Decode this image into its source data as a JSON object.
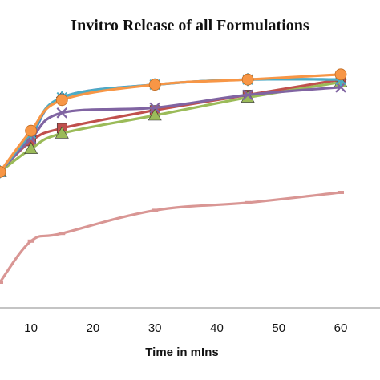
{
  "chart_data": {
    "type": "line",
    "title": "Invitro Release of all Formulations",
    "xlabel": "Time in mIns",
    "ylabel": "",
    "xlim": [
      5,
      62
    ],
    "ylim": [
      0,
      100
    ],
    "grid": false,
    "legend": "none",
    "x_ticks": [
      "10",
      "20",
      "30",
      "40",
      "50",
      "60"
    ],
    "x": [
      5,
      10,
      15,
      30,
      45,
      60
    ],
    "series": [
      {
        "color": "#4f81bd",
        "marker": "diamond",
        "values": [
          53,
          67,
          82,
          87,
          89,
          89
        ]
      },
      {
        "color": "#c0504d",
        "marker": "square",
        "values": [
          53,
          65,
          70,
          77,
          83,
          89
        ]
      },
      {
        "color": "#9bbb59",
        "marker": "triangle",
        "values": [
          53,
          62,
          68,
          75,
          82,
          88
        ]
      },
      {
        "color": "#8064a2",
        "marker": "x",
        "values": [
          53,
          66,
          76,
          78,
          83,
          86
        ]
      },
      {
        "color": "#4bacc6",
        "marker": "star",
        "values": [
          53,
          68,
          82,
          87,
          89,
          89
        ]
      },
      {
        "color": "#f79646",
        "marker": "circle",
        "values": [
          53,
          69,
          81,
          87,
          89,
          91
        ]
      },
      {
        "color": "#d99694",
        "marker": "dash",
        "values": [
          10,
          26,
          29,
          38,
          41,
          45
        ]
      }
    ]
  }
}
